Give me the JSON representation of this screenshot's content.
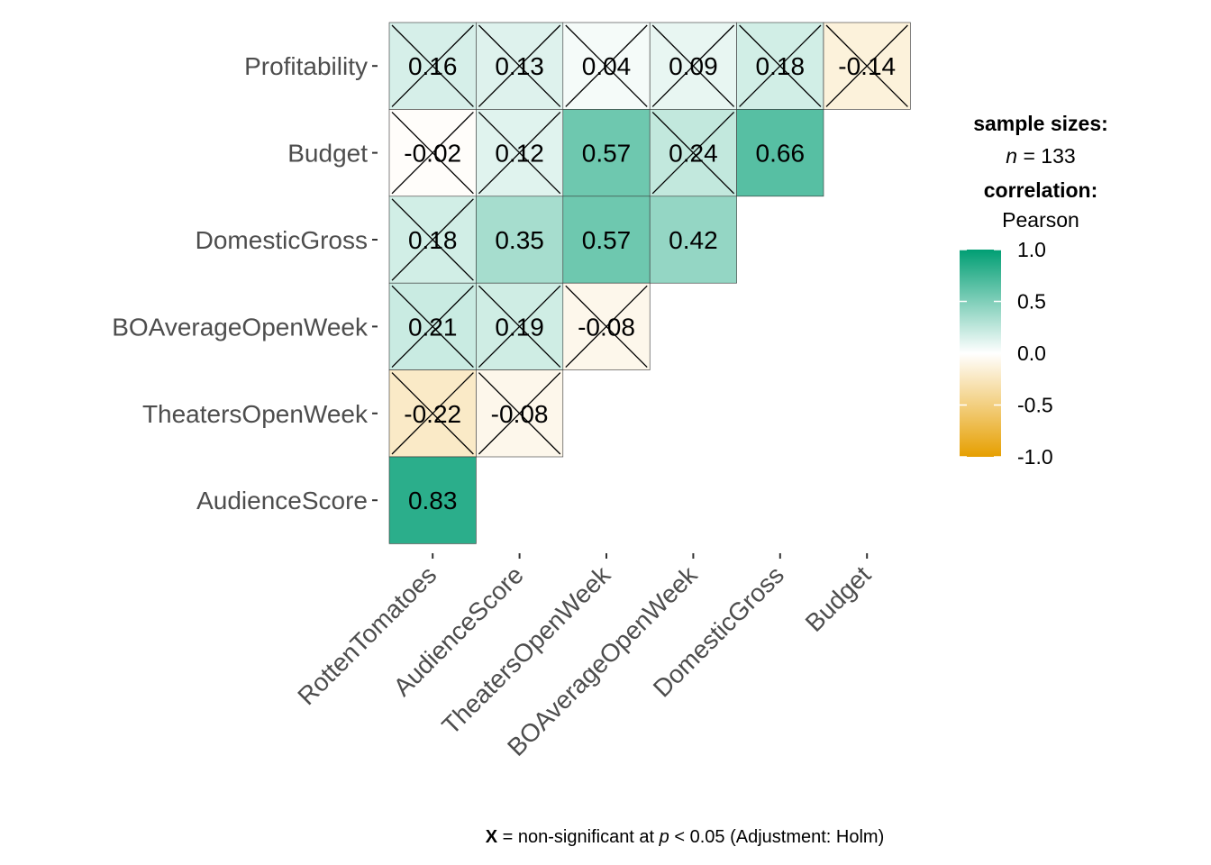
{
  "chart_data": {
    "type": "heatmap",
    "title": "",
    "x_labels": [
      "RottenTomatoes",
      "AudienceScore",
      "TheatersOpenWeek",
      "BOAverageOpenWeek",
      "DomesticGross",
      "Budget"
    ],
    "y_labels": [
      "Profitability",
      "Budget",
      "DomesticGross",
      "BOAverageOpenWeek",
      "TheatersOpenWeek",
      "AudienceScore"
    ],
    "cells": [
      {
        "row": "Profitability",
        "col": "RottenTomatoes",
        "value": 0.16,
        "label": "0.16",
        "nonsignificant": true
      },
      {
        "row": "Profitability",
        "col": "AudienceScore",
        "value": 0.13,
        "label": "0.13",
        "nonsignificant": true
      },
      {
        "row": "Profitability",
        "col": "TheatersOpenWeek",
        "value": 0.04,
        "label": "0.04",
        "nonsignificant": true
      },
      {
        "row": "Profitability",
        "col": "BOAverageOpenWeek",
        "value": 0.09,
        "label": "0.09",
        "nonsignificant": true
      },
      {
        "row": "Profitability",
        "col": "DomesticGross",
        "value": 0.18,
        "label": "0.18",
        "nonsignificant": true
      },
      {
        "row": "Profitability",
        "col": "Budget",
        "value": -0.14,
        "label": "-0.14",
        "nonsignificant": true
      },
      {
        "row": "Budget",
        "col": "RottenTomatoes",
        "value": -0.02,
        "label": "-0.02",
        "nonsignificant": true
      },
      {
        "row": "Budget",
        "col": "AudienceScore",
        "value": 0.12,
        "label": "0.12",
        "nonsignificant": true
      },
      {
        "row": "Budget",
        "col": "TheatersOpenWeek",
        "value": 0.57,
        "label": "0.57",
        "nonsignificant": false
      },
      {
        "row": "Budget",
        "col": "BOAverageOpenWeek",
        "value": 0.24,
        "label": "0.24",
        "nonsignificant": true
      },
      {
        "row": "Budget",
        "col": "DomesticGross",
        "value": 0.66,
        "label": "0.66",
        "nonsignificant": false
      },
      {
        "row": "DomesticGross",
        "col": "RottenTomatoes",
        "value": 0.18,
        "label": "0.18",
        "nonsignificant": true
      },
      {
        "row": "DomesticGross",
        "col": "AudienceScore",
        "value": 0.35,
        "label": "0.35",
        "nonsignificant": false
      },
      {
        "row": "DomesticGross",
        "col": "TheatersOpenWeek",
        "value": 0.57,
        "label": "0.57",
        "nonsignificant": false
      },
      {
        "row": "DomesticGross",
        "col": "BOAverageOpenWeek",
        "value": 0.42,
        "label": "0.42",
        "nonsignificant": false
      },
      {
        "row": "BOAverageOpenWeek",
        "col": "RottenTomatoes",
        "value": 0.21,
        "label": "0.21",
        "nonsignificant": true
      },
      {
        "row": "BOAverageOpenWeek",
        "col": "AudienceScore",
        "value": 0.19,
        "label": "0.19",
        "nonsignificant": true
      },
      {
        "row": "BOAverageOpenWeek",
        "col": "TheatersOpenWeek",
        "value": -0.08,
        "label": "-0.08",
        "nonsignificant": true
      },
      {
        "row": "TheatersOpenWeek",
        "col": "RottenTomatoes",
        "value": -0.22,
        "label": "-0.22",
        "nonsignificant": true
      },
      {
        "row": "TheatersOpenWeek",
        "col": "AudienceScore",
        "value": -0.08,
        "label": "-0.08",
        "nonsignificant": true
      },
      {
        "row": "AudienceScore",
        "col": "RottenTomatoes",
        "value": 0.83,
        "label": "0.83",
        "nonsignificant": false
      }
    ],
    "color_scale": {
      "low": "#E69F00",
      "mid": "#FFFFFF",
      "high": "#009E73",
      "limits": [
        -1.0,
        1.0
      ],
      "ticks": [
        1.0,
        0.5,
        0.0,
        -0.5,
        -1.0
      ],
      "tick_labels": [
        "1.0",
        "0.5",
        "0.0",
        "-0.5",
        "-1.0"
      ]
    },
    "legend": {
      "placement": "right",
      "heading1": "sample sizes:",
      "n_symbol": "n",
      "n_value": " = 133",
      "heading2": "correlation:",
      "method": "Pearson"
    },
    "caption": {
      "x_mark": "X",
      "part1": " = non-significant at ",
      "p_symbol": "p",
      "part2": " < 0.05 (Adjustment: Holm)"
    }
  }
}
